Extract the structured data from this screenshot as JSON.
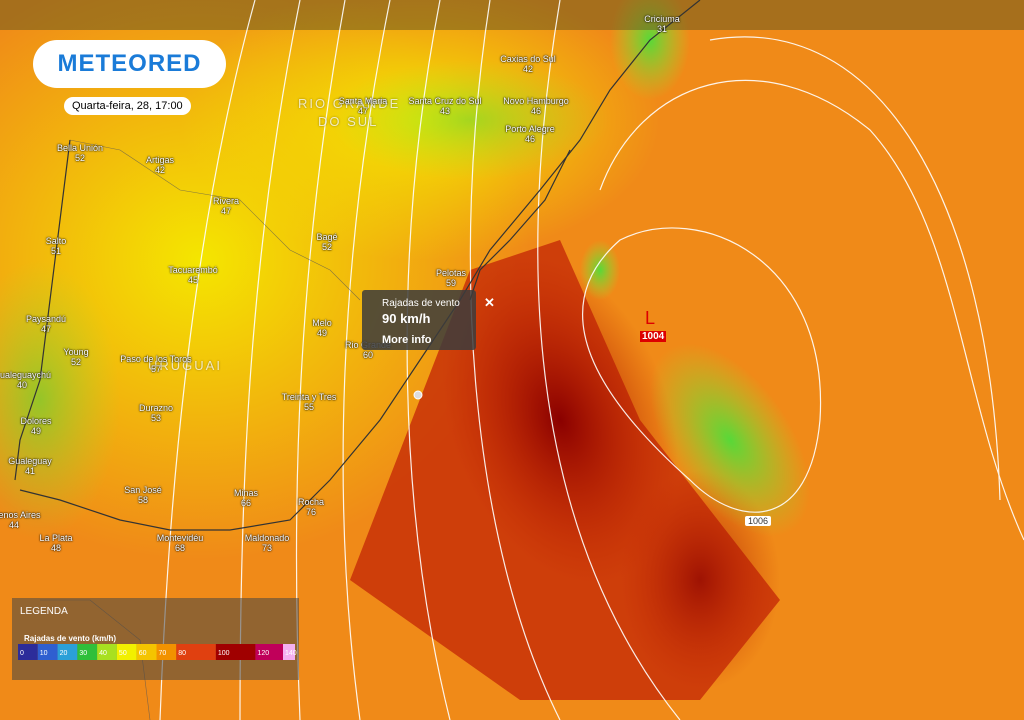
{
  "header": {
    "logo": "METEORED",
    "date": "Quarta-feira, 28, 17:00"
  },
  "regions": [
    "RIO GRANDE",
    "DO SUL",
    "URUGUAI"
  ],
  "cities": [
    {
      "name": "Criciuma",
      "value": 31
    },
    {
      "name": "Caxias do Sul",
      "value": 42
    },
    {
      "name": "Santa Maria",
      "value": 47
    },
    {
      "name": "Santa Cruz do Sul",
      "value": 43
    },
    {
      "name": "Novo Hamburgo",
      "value": 46
    },
    {
      "name": "Porto Alegre",
      "value": 46
    },
    {
      "name": "Bella Unión",
      "value": 52
    },
    {
      "name": "Artigas",
      "value": 42
    },
    {
      "name": "Rivera",
      "value": 47
    },
    {
      "name": "Salto",
      "value": 51
    },
    {
      "name": "Bagé",
      "value": 52
    },
    {
      "name": "Tacuarembó",
      "value": 45
    },
    {
      "name": "Pelotas",
      "value": 59
    },
    {
      "name": "Paysandú",
      "value": 47
    },
    {
      "name": "Young",
      "value": 52
    },
    {
      "name": "Melo",
      "value": 49
    },
    {
      "name": "Paso de los Toros",
      "value": 57
    },
    {
      "name": "Gualeguaychú",
      "value": 40
    },
    {
      "name": "Treinta y Tres",
      "value": 55
    },
    {
      "name": "Dolores",
      "value": 49
    },
    {
      "name": "Durazno",
      "value": 53
    },
    {
      "name": "Gualeguay",
      "value": 41
    },
    {
      "name": "San José",
      "value": 58
    },
    {
      "name": "Minas",
      "value": 66
    },
    {
      "name": "Rocha",
      "value": 76
    },
    {
      "name": "Buenos Aires",
      "value": 44
    },
    {
      "name": "La Plata",
      "value": 48
    },
    {
      "name": "Montevidéu",
      "value": 68
    },
    {
      "name": "Maldonado",
      "value": 73
    },
    {
      "name": "Rio Grande",
      "value": 60
    }
  ],
  "popup": {
    "title": "Rajadas de vento",
    "value": "90 km/h",
    "link": "More info"
  },
  "pressure": {
    "low": "L",
    "low_value": "1004",
    "isobar": "1006"
  },
  "legend": {
    "title": "LEGENDA",
    "subtitle": "Rajadas de vento (km/h)",
    "ticks": [
      0,
      10,
      20,
      30,
      40,
      50,
      60,
      70,
      80,
      100,
      120,
      140
    ],
    "colors": [
      "#2c2c9a",
      "#2f5fd0",
      "#2ba0d8",
      "#2fbf3a",
      "#a8e020",
      "#f2f000",
      "#f4c400",
      "#f29200",
      "#e04010",
      "#a00000",
      "#c0005a",
      "#f4b0f0"
    ]
  }
}
